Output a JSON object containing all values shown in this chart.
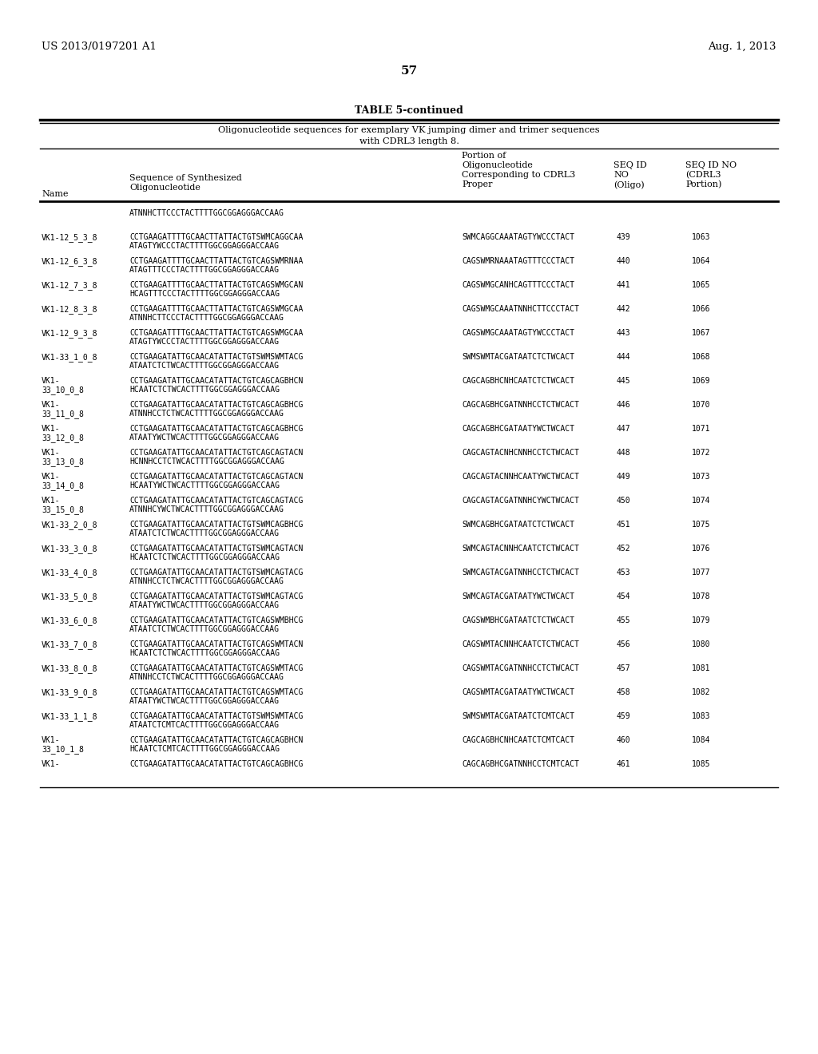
{
  "patent_left": "US 2013/0197201 A1",
  "patent_right": "Aug. 1, 2013",
  "page_number": "57",
  "table_title": "TABLE 5-continued",
  "table_subtitle1": "Oligonucleotide sequences for exemplary VK jumping dimer and trimer sequences",
  "table_subtitle2": "with CDRL3 length 8.",
  "rows": [
    {
      "name": "",
      "seq1": "ATNNHCTTCCCTACTTTTGGCGGAGGGACCAAG",
      "seq2": "",
      "portion": "",
      "seqid": "",
      "seqidno": ""
    },
    {
      "name": "VK1-12_5_3_8",
      "seq1": "CCTGAAGATTTTGCAACTTATTACTGTSWMCAGGCAA",
      "seq2": "ATAGTYWCCCTACTTTTGGCGGAGGGACCAAG",
      "portion": "SWMCAGGCAAATAGTYWCCCTACT",
      "seqid": "439",
      "seqidno": "1063"
    },
    {
      "name": "VK1-12_6_3_8",
      "seq1": "CCTGAAGATTTTGCAACTTATTACTGTCAGSWMRNAA",
      "seq2": "ATAGTTTCCCTACTTTTGGCGGAGGGACCAAG",
      "portion": "CAGSWMRNAAATAGTTTCCCTACT",
      "seqid": "440",
      "seqidno": "1064"
    },
    {
      "name": "VK1-12_7_3_8",
      "seq1": "CCTGAAGATTTTGCAACTTATTACTGTCAGSWMGCAN",
      "seq2": "HCAGTTTCCCTACTTTTGGCGGAGGGACCAAG",
      "portion": "CAGSWMGCANHCAGTTTCCCTACT",
      "seqid": "441",
      "seqidno": "1065"
    },
    {
      "name": "VK1-12_8_3_8",
      "seq1": "CCTGAAGATTTTGCAACTTATTACTGTCAGSWMGCAA",
      "seq2": "ATNNHCTTCCCTACTTTTGGCGGAGGGACCAAG",
      "portion": "CAGSWMGCAAATNNHCTTCCCTACT",
      "seqid": "442",
      "seqidno": "1066"
    },
    {
      "name": "VK1-12_9_3_8",
      "seq1": "CCTGAAGATTTTGCAACTTATTACTGTCAGSWMGCAA",
      "seq2": "ATAGTYWCCCTACTTTTGGCGGAGGGACCAAG",
      "portion": "CAGSWMGCAAATAGTYWCCCTACT",
      "seqid": "443",
      "seqidno": "1067"
    },
    {
      "name": "VK1-33_1_0_8",
      "seq1": "CCTGAAGATATTGCAACATATTACTGTSWMSWMTACG",
      "seq2": "ATAATCTCTWCACTTTTGGCGGAGGGACCAAG",
      "portion": "SWMSWMTACGATAATCTCTWCACT",
      "seqid": "444",
      "seqidno": "1068"
    },
    {
      "name": "VK1-\n33_10_0_8",
      "seq1": "CCTGAAGATATTGCAACATATTACTGTCAGCAGBHCN",
      "seq2": "HCAATCTCTWCACTTTTGGCGGAGGGACCAAG",
      "portion": "CAGCAGBHCNHCAATCTCTWCACT",
      "seqid": "445",
      "seqidno": "1069"
    },
    {
      "name": "VK1-\n33_11_0_8",
      "seq1": "CCTGAAGATATTGCAACATATTACTGTCAGCAGBHCG",
      "seq2": "ATNNHCCTCTWCACTTTTGGCGGAGGGACCAAG",
      "portion": "CAGCAGBHCGATNNHCCTCTWCACT",
      "seqid": "446",
      "seqidno": "1070"
    },
    {
      "name": "VK1-\n33_12_0_8",
      "seq1": "CCTGAAGATATTGCAACATATTACTGTCAGCAGBHCG",
      "seq2": "ATAATYWCTWCACTTTTGGCGGAGGGACCAAG",
      "portion": "CAGCAGBHCGATAATYWCTWCACT",
      "seqid": "447",
      "seqidno": "1071"
    },
    {
      "name": "VK1-\n33_13_0_8",
      "seq1": "CCTGAAGATATTGCAACATATTACTGTCAGCAGTACN",
      "seq2": "HCNNHCCTCTWCACTTTTGGCGGAGGGACCAAG",
      "portion": "CAGCAGTACNHCNNHCCTCTWCACT",
      "seqid": "448",
      "seqidno": "1072"
    },
    {
      "name": "VK1-\n33_14_0_8",
      "seq1": "CCTGAAGATATTGCAACATATTACTGTCAGCAGTACN",
      "seq2": "HCAATYWCTWCACTTTTGGCGGAGGGACCAAG",
      "portion": "CAGCAGTACNNHCAATYWCTWCACT",
      "seqid": "449",
      "seqidno": "1073"
    },
    {
      "name": "VK1-\n33_15_0_8",
      "seq1": "CCTGAAGATATTGCAACATATTACTGTCAGCAGTACG",
      "seq2": "ATNNHCYWCTWCACTTTTGGCGGAGGGACCAAG",
      "portion": "CAGCAGTACGATNNHCYWCTWCACT",
      "seqid": "450",
      "seqidno": "1074"
    },
    {
      "name": "VK1-33_2_0_8",
      "seq1": "CCTGAAGATATTGCAACATATTACTGTSWMCAGBHCG",
      "seq2": "ATAATCTCTWCACTTTTGGCGGAGGGACCAAG",
      "portion": "SWMCAGBHCGATAATCTCTWCACT",
      "seqid": "451",
      "seqidno": "1075"
    },
    {
      "name": "VK1-33_3_0_8",
      "seq1": "CCTGAAGATATTGCAACATATTACTGTSWMCAGTACN",
      "seq2": "HCAATCTCTWCACTTTTGGCGGAGGGACCAAG",
      "portion": "SWMCAGTACNNHCAATCTCTWCACT",
      "seqid": "452",
      "seqidno": "1076"
    },
    {
      "name": "VK1-33_4_0_8",
      "seq1": "CCTGAAGATATTGCAACATATTACTGTSWMCAGTACG",
      "seq2": "ATNNHCCTCTWCACTTTTGGCGGAGGGACCAAG",
      "portion": "SWMCAGTACGATNNHCCTCTWCACT",
      "seqid": "453",
      "seqidno": "1077"
    },
    {
      "name": "VK1-33_5_0_8",
      "seq1": "CCTGAAGATATTGCAACATATTACTGTSWMCAGTACG",
      "seq2": "ATAATYWCTWCACTTTTGGCGGAGGGACCAAG",
      "portion": "SWMCAGTACGATAATYWCTWCACT",
      "seqid": "454",
      "seqidno": "1078"
    },
    {
      "name": "VK1-33_6_0_8",
      "seq1": "CCTGAAGATATTGCAACATATTACTGTCAGSWMBHCG",
      "seq2": "ATAATCTCTWCACTTTTGGCGGAGGGACCAAG",
      "portion": "CAGSWMBHCGATAATCTCTWCACT",
      "seqid": "455",
      "seqidno": "1079"
    },
    {
      "name": "VK1-33_7_0_8",
      "seq1": "CCTGAAGATATTGCAACATATTACTGTCAGSWMTACN",
      "seq2": "HCAATCTCTWCACTTTTGGCGGAGGGACCAAG",
      "portion": "CAGSWMTACNNHCAATCTCTWCACT",
      "seqid": "456",
      "seqidno": "1080"
    },
    {
      "name": "VK1-33_8_0_8",
      "seq1": "CCTGAAGATATTGCAACATATTACTGTCAGSWMTACG",
      "seq2": "ATNNHCCTCTWCACTTTTGGCGGAGGGACCAAG",
      "portion": "CAGSWMTACGATNNHCCTCTWCACT",
      "seqid": "457",
      "seqidno": "1081"
    },
    {
      "name": "VK1-33_9_0_8",
      "seq1": "CCTGAAGATATTGCAACATATTACTGTCAGSWMTACG",
      "seq2": "ATAATYWCTWCACTTTTGGCGGAGGGACCAAG",
      "portion": "CAGSWMTACGATAATYWCTWCACT",
      "seqid": "458",
      "seqidno": "1082"
    },
    {
      "name": "VK1-33_1_1_8",
      "seq1": "CCTGAAGATATTGCAACATATTACTGTSWMSWMTACG",
      "seq2": "ATAATCTCMTCACTTTTGGCGGAGGGACCAAG",
      "portion": "SWMSWMTACGATAATCTCMTCACT",
      "seqid": "459",
      "seqidno": "1083"
    },
    {
      "name": "VK1-\n33_10_1_8",
      "seq1": "CCTGAAGATATTGCAACATATTACTGTCAGCAGBHCN",
      "seq2": "HCAATCTCMTCACTTTTGGCGGAGGGACCAAG",
      "portion": "CAGCAGBHCNHCAATCTCMTCACT",
      "seqid": "460",
      "seqidno": "1084"
    },
    {
      "name": "VK1-",
      "seq1": "CCTGAAGATATTGCAACATATTACTGTCAGCAGBHCG",
      "seq2": "",
      "portion": "CAGCAGBHCGATNNHCCTCMTCACT",
      "seqid": "461",
      "seqidno": "1085"
    }
  ],
  "background_color": "#ffffff",
  "text_color": "#000000"
}
